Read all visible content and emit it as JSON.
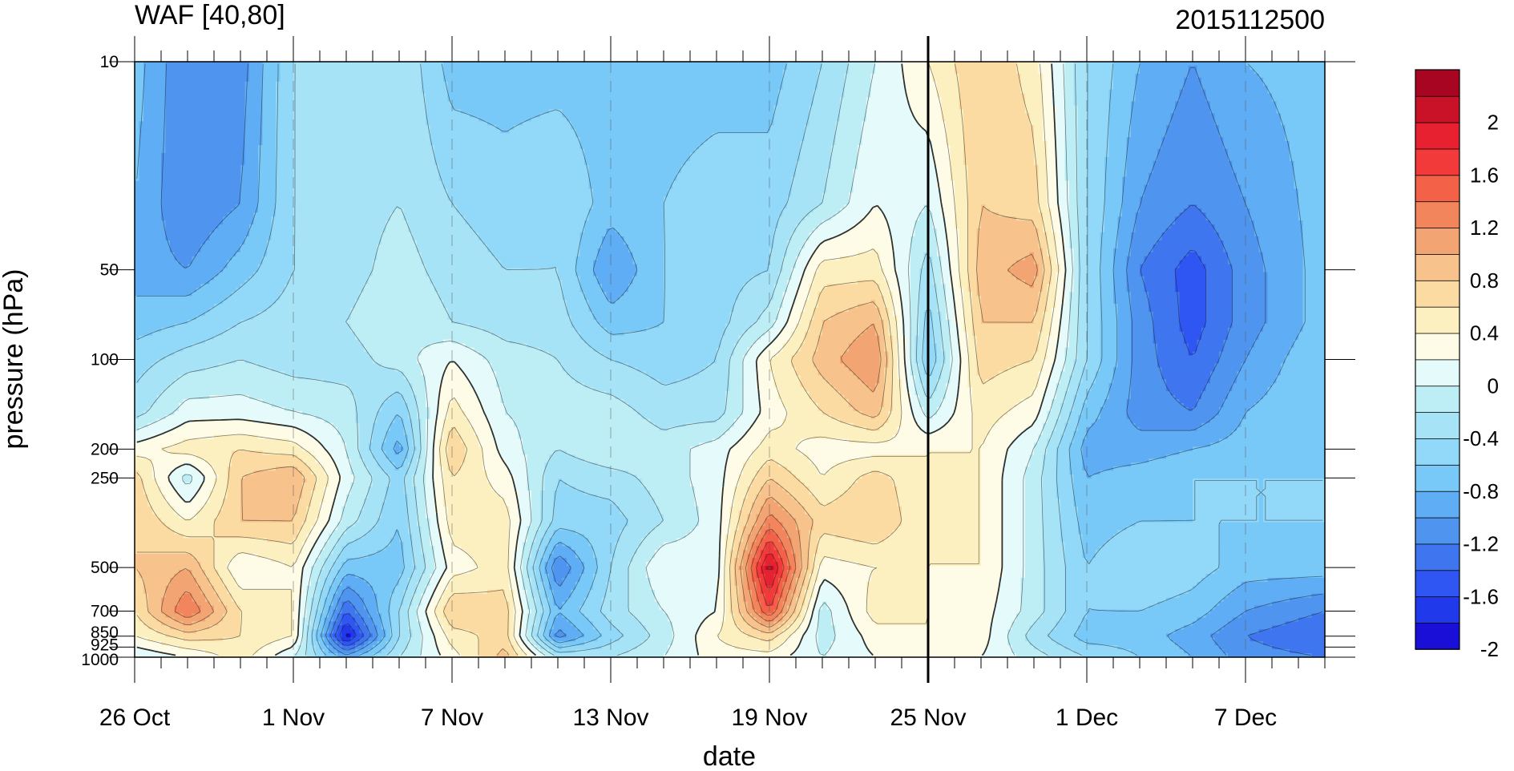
{
  "chart_data": {
    "type": "heatmap",
    "title_left": "WAF [40,80]",
    "title_right": "2015112500",
    "xlabel": "date",
    "ylabel": "pressure (hPa)",
    "x_tick_labels": [
      "26 Oct",
      "1 Nov",
      "7 Nov",
      "13 Nov",
      "19 Nov",
      "25 Nov",
      "1 Dec",
      "7 Dec"
    ],
    "x_range": [
      "2015-10-26",
      "2015-12-10"
    ],
    "y_scale": "log",
    "y_reversed": true,
    "y_tick_labels": [
      "10",
      "50",
      "100",
      "200",
      "250",
      "500",
      "700",
      "850",
      "925",
      "1000"
    ],
    "y_levels": [
      10,
      50,
      100,
      200,
      250,
      500,
      700,
      850,
      925,
      1000
    ],
    "y_range": [
      10,
      1000
    ],
    "colorbar_labels": [
      "2",
      "1.6",
      "1.2",
      "0.8",
      "0.4",
      "0",
      "-0.4",
      "-0.8",
      "-1.2",
      "-1.6",
      "-2"
    ],
    "contour_levels": [
      -2.2,
      -2.0,
      -1.8,
      -1.6,
      -1.4,
      -1.2,
      -1.0,
      -0.8,
      -0.6,
      -0.4,
      -0.2,
      0.0,
      0.2,
      0.4,
      0.6,
      0.8,
      1.0,
      1.2,
      1.4,
      1.6,
      1.8,
      2.0,
      2.2
    ],
    "palette": [
      "#1a0fd6",
      "#2039ea",
      "#2f56f2",
      "#3f76f0",
      "#4f95f0",
      "#5fadf5",
      "#79c9f8",
      "#92d8f8",
      "#a7e3f7",
      "#bdeef5",
      "#e5fbfb",
      "#fefce6",
      "#fdf0c0",
      "#fbdba2",
      "#f7c28b",
      "#f3a473",
      "#f2855c",
      "#f26148",
      "#f23a3a",
      "#e82130",
      "#c91228",
      "#a80522"
    ],
    "vertical_marker": "2015-11-25",
    "field_rows_pressure": [
      10,
      30,
      50,
      75,
      100,
      150,
      200,
      250,
      350,
      500,
      700,
      850,
      1000
    ],
    "field_columns_dates": [
      "2015-10-26",
      "2015-10-28",
      "2015-10-30",
      "2015-11-01",
      "2015-11-03",
      "2015-11-05",
      "2015-11-07",
      "2015-11-09",
      "2015-11-11",
      "2015-11-13",
      "2015-11-15",
      "2015-11-17",
      "2015-11-19",
      "2015-11-21",
      "2015-11-23",
      "2015-11-25",
      "2015-11-27",
      "2015-11-29",
      "2015-12-01",
      "2015-12-03",
      "2015-12-05",
      "2015-12-07",
      "2015-12-10"
    ],
    "field_values": [
      [
        -0.9,
        -1.4,
        -1.3,
        -0.6,
        -0.5,
        -0.4,
        -0.9,
        -0.9,
        -0.9,
        -0.9,
        -0.9,
        -0.9,
        -0.9,
        -0.6,
        -0.2,
        0.2,
        0.6,
        0.3,
        -0.6,
        -1.0,
        -1.2,
        -1.0,
        -0.9
      ],
      [
        -1.0,
        -1.4,
        -1.2,
        -0.6,
        -0.5,
        -0.4,
        -0.6,
        -0.7,
        -0.6,
        -0.9,
        -0.8,
        -0.7,
        -0.7,
        -0.4,
        0.0,
        -0.2,
        0.6,
        0.5,
        -0.6,
        -1.2,
        -1.4,
        -1.2,
        -0.9
      ],
      [
        -1.1,
        -1.2,
        -0.9,
        -0.6,
        -0.5,
        -0.3,
        -0.5,
        -0.6,
        -0.6,
        -1.2,
        -0.8,
        -0.7,
        -0.6,
        0.3,
        0.3,
        -0.5,
        0.7,
        0.9,
        -0.6,
        -1.4,
        -1.7,
        -1.3,
        -0.9
      ],
      [
        -0.9,
        -0.8,
        -0.6,
        -0.5,
        -0.4,
        -0.2,
        -0.4,
        -0.5,
        -0.5,
        -0.9,
        -0.8,
        -0.7,
        -0.3,
        0.6,
        0.8,
        -0.7,
        0.6,
        0.6,
        -0.6,
        -1.3,
        -1.7,
        -1.3,
        -0.9
      ],
      [
        -0.7,
        -0.5,
        -0.4,
        -0.5,
        -0.5,
        -0.3,
        0.0,
        -0.3,
        -0.4,
        -0.6,
        -0.7,
        -0.6,
        0.2,
        0.7,
        1.0,
        -0.8,
        0.5,
        0.4,
        -0.6,
        -1.3,
        -1.6,
        -1.2,
        -0.8
      ],
      [
        -0.5,
        -0.1,
        -0.1,
        -0.2,
        -0.3,
        -0.8,
        0.3,
        -0.2,
        -0.3,
        -0.3,
        -0.5,
        -0.5,
        0.1,
        0.4,
        0.7,
        -0.3,
        0.3,
        0.1,
        -0.9,
        -1.3,
        -1.4,
        -1.0,
        -0.8
      ],
      [
        0.1,
        0.3,
        0.4,
        0.3,
        -0.2,
        -1.1,
        0.6,
        -0.1,
        -0.4,
        -0.2,
        -0.3,
        -0.1,
        0.3,
        0.1,
        0.1,
        0.2,
        0.2,
        -0.2,
        -1.1,
        -1.1,
        -1.0,
        -0.9,
        -0.8
      ],
      [
        0.5,
        -0.3,
        0.6,
        0.8,
        -0.1,
        -0.7,
        0.4,
        0.1,
        -0.6,
        -0.5,
        -0.3,
        -0.1,
        0.6,
        0.2,
        0.5,
        0.2,
        0.2,
        -0.3,
        -1.0,
        -0.9,
        -0.8,
        -0.8,
        -0.8
      ],
      [
        0.6,
        0.2,
        0.6,
        0.6,
        -0.3,
        -0.8,
        0.3,
        0.3,
        -0.7,
        -0.7,
        -0.4,
        -0.1,
        1.1,
        0.5,
        0.6,
        0.2,
        0.2,
        -0.3,
        -0.9,
        -0.8,
        -0.8,
        -0.8,
        -0.8
      ],
      [
        0.6,
        0.8,
        0.0,
        0.2,
        -0.9,
        -0.9,
        0.1,
        0.3,
        -1.4,
        -0.6,
        0.0,
        -0.1,
        1.9,
        0.1,
        0.2,
        0.2,
        0.2,
        -0.3,
        -0.8,
        -0.6,
        -0.7,
        -0.9,
        -0.9
      ],
      [
        0.4,
        1.2,
        0.4,
        0.2,
        -1.6,
        -0.6,
        0.6,
        0.5,
        -1.0,
        -0.5,
        -0.2,
        0.0,
        1.4,
        -0.3,
        0.3,
        0.2,
        0.1,
        -0.3,
        -0.8,
        -0.8,
        -0.9,
        -1.2,
        -1.4
      ],
      [
        0.2,
        0.5,
        0.4,
        0.2,
        -2.1,
        -0.6,
        0.3,
        0.5,
        -1.3,
        -0.7,
        -0.3,
        0.2,
        0.5,
        -0.3,
        0.1,
        0.2,
        0.1,
        -0.5,
        -0.9,
        -0.9,
        -1.1,
        -1.4,
        -1.6
      ],
      [
        -0.2,
        0.0,
        0.3,
        -0.2,
        -1.1,
        -0.4,
        0.1,
        0.7,
        -0.4,
        -0.4,
        -0.2,
        0.1,
        0.1,
        -0.2,
        0.0,
        0.1,
        0.0,
        -0.3,
        -0.6,
        -0.8,
        -1.0,
        -1.3,
        -1.4
      ]
    ]
  }
}
